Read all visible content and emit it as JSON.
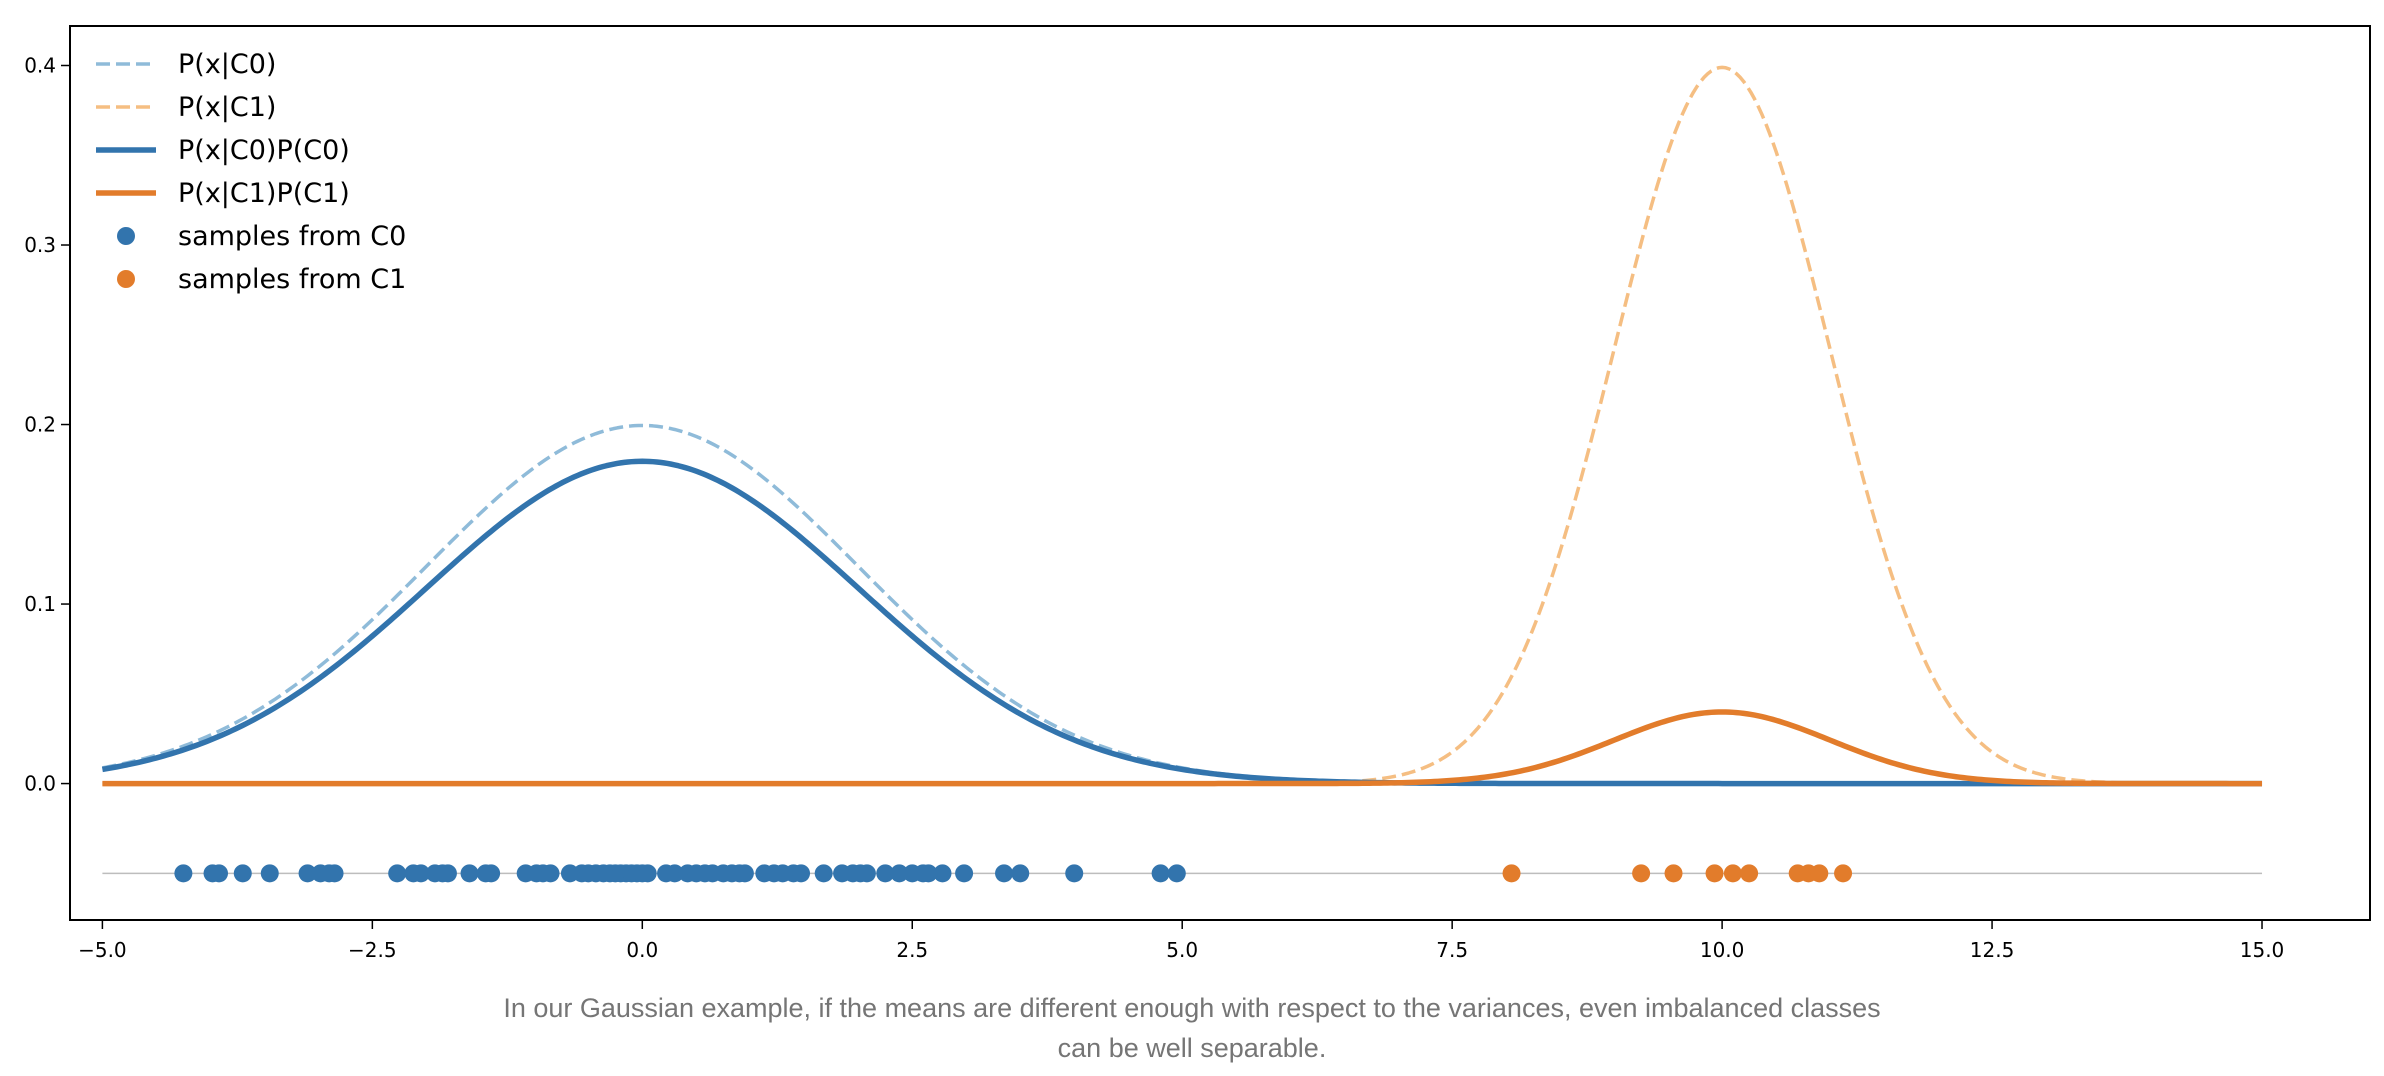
{
  "chart_data": {
    "type": "line",
    "xlim": [
      -5.3,
      16.0
    ],
    "ylim": [
      -0.076,
      0.422
    ],
    "xticks": [
      -5.0,
      -2.5,
      0.0,
      2.5,
      5.0,
      7.5,
      10.0,
      12.5,
      15.0
    ],
    "xtick_labels": [
      "−5.0",
      "−2.5",
      "0.0",
      "2.5",
      "5.0",
      "7.5",
      "10.0",
      "12.5",
      "15.0"
    ],
    "yticks": [
      0.0,
      0.1,
      0.2,
      0.3,
      0.4
    ],
    "ytick_labels": [
      "0.0",
      "0.1",
      "0.2",
      "0.3",
      "0.4"
    ],
    "x_range": [
      -5.0,
      15.0
    ],
    "series": [
      {
        "name": "P(x|C0)",
        "kind": "gaussian",
        "mean": 0,
        "std": 2,
        "scale": 1.0,
        "style": "dashed",
        "color": "#8fbbd9"
      },
      {
        "name": "P(x|C1)",
        "kind": "gaussian",
        "mean": 10,
        "std": 1,
        "scale": 1.0,
        "style": "dashed",
        "color": "#f5be82"
      },
      {
        "name": "P(x|C0)P(C0)",
        "kind": "gaussian",
        "mean": 0,
        "std": 2,
        "scale": 0.9,
        "style": "solid",
        "color": "#3274ad"
      },
      {
        "name": "P(x|C1)P(C1)",
        "kind": "gaussian",
        "mean": 10,
        "std": 1,
        "scale": 0.1,
        "style": "solid",
        "color": "#e27c2b"
      }
    ],
    "baseline_y": -0.05,
    "samples": [
      {
        "name": "samples from C0",
        "color": "#3274ad",
        "y": -0.05,
        "x": [
          -4.25,
          -3.98,
          -3.92,
          -3.7,
          -3.45,
          -3.1,
          -2.98,
          -2.9,
          -2.85,
          -2.27,
          -2.12,
          -2.05,
          -1.92,
          -1.85,
          -1.8,
          -1.6,
          -1.45,
          -1.4,
          -1.08,
          -0.98,
          -0.92,
          -0.85,
          -0.67,
          -0.56,
          -0.5,
          -0.43,
          -0.36,
          -0.3,
          -0.25,
          -0.2,
          -0.15,
          -0.1,
          -0.05,
          0.0,
          0.05,
          0.22,
          0.3,
          0.42,
          0.5,
          0.58,
          0.65,
          0.75,
          0.83,
          0.9,
          0.95,
          1.13,
          1.22,
          1.3,
          1.4,
          1.47,
          1.68,
          1.85,
          1.95,
          2.02,
          2.08,
          2.25,
          2.38,
          2.5,
          2.6,
          2.65,
          2.78,
          2.98,
          3.35,
          3.5,
          4.0,
          4.8,
          4.95
        ]
      },
      {
        "name": "samples from C1",
        "color": "#e27c2b",
        "y": -0.05,
        "x": [
          8.05,
          9.25,
          9.55,
          9.93,
          10.1,
          10.25,
          10.7,
          10.8,
          10.9,
          11.12
        ]
      }
    ],
    "legend_position": "top-left",
    "grid": false
  },
  "caption": {
    "line1": "In our Gaussian example, if the means are different enough with respect to the variances, even imbalanced classes",
    "line2": "can be well separable."
  }
}
